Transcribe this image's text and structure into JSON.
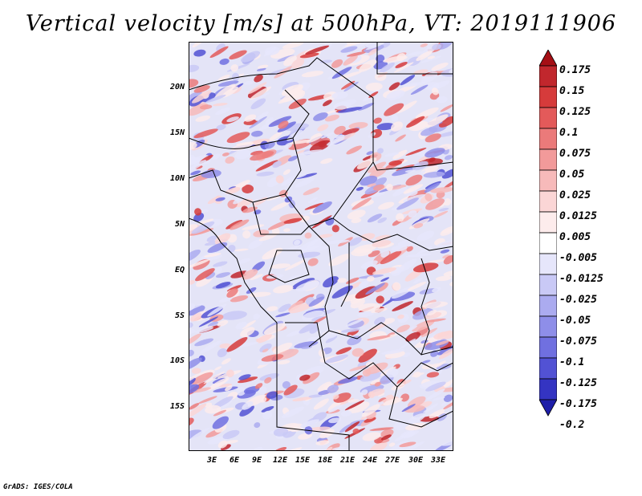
{
  "title": "Vertical velocity [m/s] at 500hPa, VT: 2019111906",
  "credit": "GrADS: IGES/COLA",
  "lat_labels": [
    "20N",
    "15N",
    "10N",
    "5N",
    "EQ",
    "5S",
    "10S",
    "15S"
  ],
  "lon_labels": [
    "3E",
    "6E",
    "9E",
    "12E",
    "15E",
    "18E",
    "21E",
    "24E",
    "27E",
    "30E",
    "33E"
  ],
  "colorbar": {
    "labels": [
      "0.175",
      "0.15",
      "0.125",
      "0.1",
      "0.075",
      "0.05",
      "0.025",
      "0.0125",
      "0.005",
      "-0.005",
      "-0.0125",
      "-0.025",
      "-0.05",
      "-0.075",
      "-0.1",
      "-0.125",
      "-0.175",
      "-0.2"
    ],
    "colors": [
      "#a50f15",
      "#c1272d",
      "#d63b3b",
      "#e35a5a",
      "#eb7a7a",
      "#f29a9a",
      "#f7baba",
      "#fbd6d6",
      "#fdecec",
      "#ffffff",
      "#e6e6fb",
      "#c9c9f6",
      "#ababf0",
      "#8e8ee9",
      "#7070e0",
      "#5252d4",
      "#3434c2",
      "#1e1ea8"
    ]
  }
}
